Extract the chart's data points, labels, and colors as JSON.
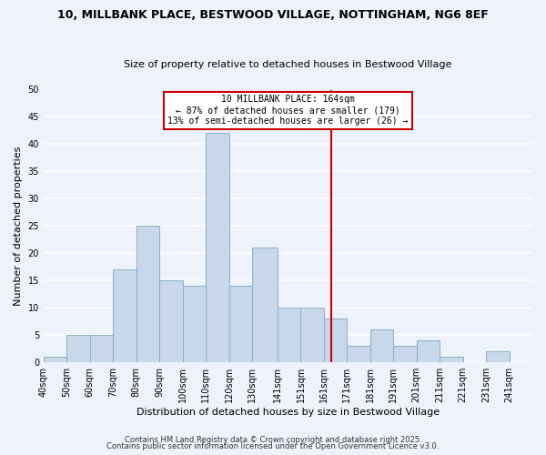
{
  "title": "10, MILLBANK PLACE, BESTWOOD VILLAGE, NOTTINGHAM, NG6 8EF",
  "subtitle": "Size of property relative to detached houses in Bestwood Village",
  "xlabel": "Distribution of detached houses by size in Bestwood Village",
  "ylabel": "Number of detached properties",
  "bar_color": "#c8d8ea",
  "bar_edge_color": "#8aafc8",
  "background_color": "#eef2fb",
  "grid_color": "#ffffff",
  "bin_labels": [
    "40sqm",
    "50sqm",
    "60sqm",
    "70sqm",
    "80sqm",
    "90sqm",
    "100sqm",
    "110sqm",
    "120sqm",
    "130sqm",
    "141sqm",
    "151sqm",
    "161sqm",
    "171sqm",
    "181sqm",
    "191sqm",
    "201sqm",
    "211sqm",
    "221sqm",
    "231sqm",
    "241sqm"
  ],
  "bin_edges": [
    40,
    50,
    60,
    70,
    80,
    90,
    100,
    110,
    120,
    130,
    141,
    151,
    161,
    171,
    181,
    191,
    201,
    211,
    221,
    231,
    241,
    251
  ],
  "counts": [
    1,
    5,
    5,
    17,
    25,
    15,
    14,
    42,
    14,
    21,
    10,
    10,
    8,
    3,
    6,
    3,
    4,
    1,
    0,
    2,
    0
  ],
  "property_size": 164,
  "vline_color": "#cc0000",
  "annotation_title": "10 MILLBANK PLACE: 164sqm",
  "annotation_line1": "← 87% of detached houses are smaller (179)",
  "annotation_line2": "13% of semi-detached houses are larger (26) →",
  "ylim": [
    0,
    50
  ],
  "yticks": [
    0,
    5,
    10,
    15,
    20,
    25,
    30,
    35,
    40,
    45,
    50
  ],
  "footer1": "Contains HM Land Registry data © Crown copyright and database right 2025.",
  "footer2": "Contains public sector information licensed under the Open Government Licence v3.0.",
  "title_fontsize": 9,
  "subtitle_fontsize": 8,
  "xlabel_fontsize": 8,
  "ylabel_fontsize": 8,
  "tick_fontsize": 7,
  "annotation_fontsize": 7,
  "footer_fontsize": 6
}
